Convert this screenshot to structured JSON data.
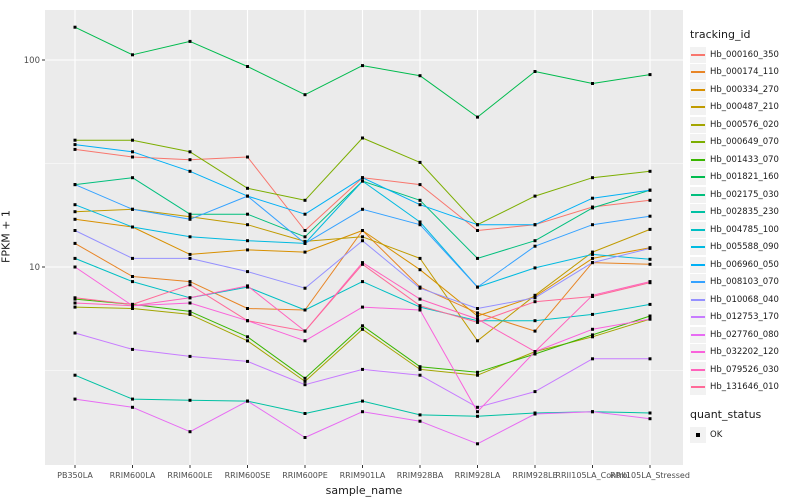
{
  "chart_data": {
    "type": "line",
    "title": "",
    "xlabel": "sample_name",
    "ylabel": "FPKM + 1",
    "x_categories": [
      "PB350LA",
      "RRIM600LA",
      "RRIM600LE",
      "RRIM600SE",
      "RRIM600PE",
      "RRIM901LA",
      "RRIM928BA",
      "RRIM928LA",
      "RRIM928LE",
      "RRII105LA_Control",
      "RRII105LA_Stressed"
    ],
    "y_scale": "log10",
    "y_ticks": [
      10,
      100
    ],
    "y_tick_labels": [
      "10",
      "100"
    ],
    "y_minor": [
      3.162,
      31.62
    ],
    "ylim": [
      1.1,
      175
    ],
    "grid": "on",
    "legend_position": "right",
    "point_shape": "black-square",
    "series": [
      {
        "name": "Hb_000160_350",
        "color": "#F8766D",
        "values": [
          37,
          34,
          33,
          34,
          15,
          27,
          25,
          15,
          16,
          19.5,
          21
        ]
      },
      {
        "name": "Hb_000174_110",
        "color": "#E88526",
        "values": [
          13,
          9,
          8.5,
          6.3,
          6.2,
          15,
          8,
          6,
          4.9,
          10.5,
          10.3
        ]
      },
      {
        "name": "Hb_000334_270",
        "color": "#D89000",
        "values": [
          17,
          15.6,
          11.5,
          12.1,
          11.8,
          15,
          9.7,
          5.8,
          7.2,
          11,
          12.4
        ]
      },
      {
        "name": "Hb_000487_210",
        "color": "#C09B00",
        "values": [
          18.5,
          19,
          17.5,
          16,
          13.3,
          14,
          11,
          4.4,
          7.3,
          11.8,
          15.2
        ]
      },
      {
        "name": "Hb_000576_020",
        "color": "#A3A500",
        "values": [
          6.4,
          6.3,
          5.9,
          4.4,
          2.8,
          5.0,
          3.2,
          3.0,
          3.9,
          4.6,
          5.6
        ]
      },
      {
        "name": "Hb_000649_070",
        "color": "#7CAE00",
        "values": [
          41,
          41,
          36,
          24,
          21,
          42,
          32,
          16,
          22,
          27,
          29
        ]
      },
      {
        "name": "Hb_001433_070",
        "color": "#39B600",
        "values": [
          7.0,
          6.6,
          6.1,
          4.6,
          2.9,
          5.2,
          3.3,
          3.1,
          3.8,
          4.7,
          5.8
        ]
      },
      {
        "name": "Hb_001821_160",
        "color": "#00BB4E",
        "values": [
          144,
          106,
          123,
          93,
          68,
          94,
          84,
          53,
          88,
          77,
          85
        ]
      },
      {
        "name": "Hb_002175_030",
        "color": "#00BF7D",
        "values": [
          25,
          27,
          18,
          18,
          14,
          26,
          21,
          11,
          13.4,
          19.3,
          23.5
        ]
      },
      {
        "name": "Hb_002835_230",
        "color": "#00C1A3",
        "values": [
          3.0,
          2.3,
          2.27,
          2.25,
          1.96,
          2.25,
          1.93,
          1.9,
          1.97,
          2.0,
          1.97
        ]
      },
      {
        "name": "Hb_004785_100",
        "color": "#00BFC4",
        "values": [
          11,
          8.5,
          7.1,
          8,
          6.2,
          8.5,
          6.4,
          5.5,
          5.5,
          5.9,
          6.6
        ]
      },
      {
        "name": "Hb_005588_090",
        "color": "#00BAE0",
        "values": [
          20,
          15.6,
          14,
          13.4,
          13,
          26,
          16.5,
          8,
          9.9,
          11.5,
          10.9
        ]
      },
      {
        "name": "Hb_006960_050",
        "color": "#00B0F6",
        "values": [
          39,
          36,
          29,
          22,
          18,
          27,
          20,
          16,
          16,
          21.5,
          23.5
        ]
      },
      {
        "name": "Hb_008103_070",
        "color": "#35A2FF",
        "values": [
          25,
          19,
          17,
          22,
          13,
          19,
          16,
          8,
          12.6,
          16,
          17.6
        ]
      },
      {
        "name": "Hb_010068_040",
        "color": "#9590FF",
        "values": [
          15,
          11,
          11,
          9.5,
          7.9,
          13.4,
          7.9,
          6.3,
          7.1,
          10.5,
          12.3
        ]
      },
      {
        "name": "Hb_012753_170",
        "color": "#C77CFF",
        "values": [
          4.8,
          4.0,
          3.7,
          3.5,
          2.7,
          3.2,
          3.0,
          2.1,
          2.5,
          3.6,
          3.6
        ]
      },
      {
        "name": "Hb_027760_080",
        "color": "#E76BF3",
        "values": [
          2.3,
          2.1,
          1.6,
          2.25,
          1.5,
          2.0,
          1.8,
          1.4,
          1.95,
          2.0,
          1.85
        ]
      },
      {
        "name": "Hb_032202_120",
        "color": "#FA62DB",
        "values": [
          10,
          6.5,
          6.7,
          5.5,
          4.4,
          6.4,
          6.2,
          2.0,
          3.9,
          5.0,
          5.6
        ]
      },
      {
        "name": "Hb_079526_030",
        "color": "#FF62BC",
        "values": [
          6.7,
          6.5,
          7.1,
          8.1,
          4.9,
          10.5,
          7.0,
          5.6,
          3.9,
          7.3,
          8.5
        ]
      },
      {
        "name": "Hb_131646_010",
        "color": "#FF6A98",
        "values": [
          7.1,
          6.6,
          8.2,
          5.5,
          4.9,
          10.3,
          6.5,
          5.4,
          6.8,
          7.2,
          8.4
        ]
      }
    ],
    "legend": {
      "color_title": "tracking_id",
      "shape_title": "quant_status",
      "shape_items": [
        {
          "label": "OK"
        }
      ]
    }
  },
  "style": {
    "panel_bg": "#EBEBEB",
    "grid_color": "#FFFFFF",
    "tick_color": "#333333",
    "tick_label_color": "#4D4D4D",
    "point_color": "#000000",
    "legend_key_bg": "#F2F2F2"
  }
}
